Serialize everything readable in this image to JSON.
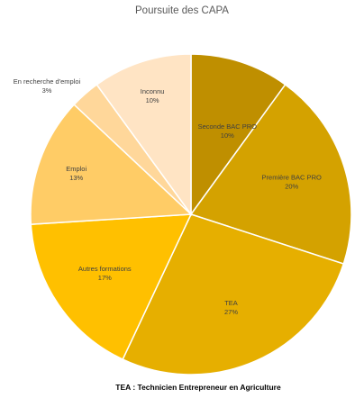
{
  "chart_data": {
    "type": "pie",
    "title": "Poursuite des CAPA",
    "note": "TEA : Technicien Entrepreneur en Agriculture",
    "slices": [
      {
        "label": "Seconde BAC PRO",
        "percent_label": "10%",
        "value": 10,
        "color": "#BF8F00"
      },
      {
        "label": "Première BAC PRO",
        "percent_label": "20%",
        "value": 20,
        "color": "#D4A200"
      },
      {
        "label": "TEA",
        "percent_label": "27%",
        "value": 27,
        "color": "#E6AF00"
      },
      {
        "label": "Autres formations",
        "percent_label": "17%",
        "value": 17,
        "color": "#FFC000"
      },
      {
        "label": "Emploi",
        "percent_label": "13%",
        "value": 13,
        "color": "#FFCC66"
      },
      {
        "label": "En recherche d'emploi",
        "percent_label": "3%",
        "value": 3,
        "color": "#FFD79A"
      },
      {
        "label": "Inconnu",
        "percent_label": "10%",
        "value": 10,
        "color": "#FFE4C4"
      }
    ],
    "legend": "none",
    "start": "top",
    "direction": "clockwise"
  }
}
